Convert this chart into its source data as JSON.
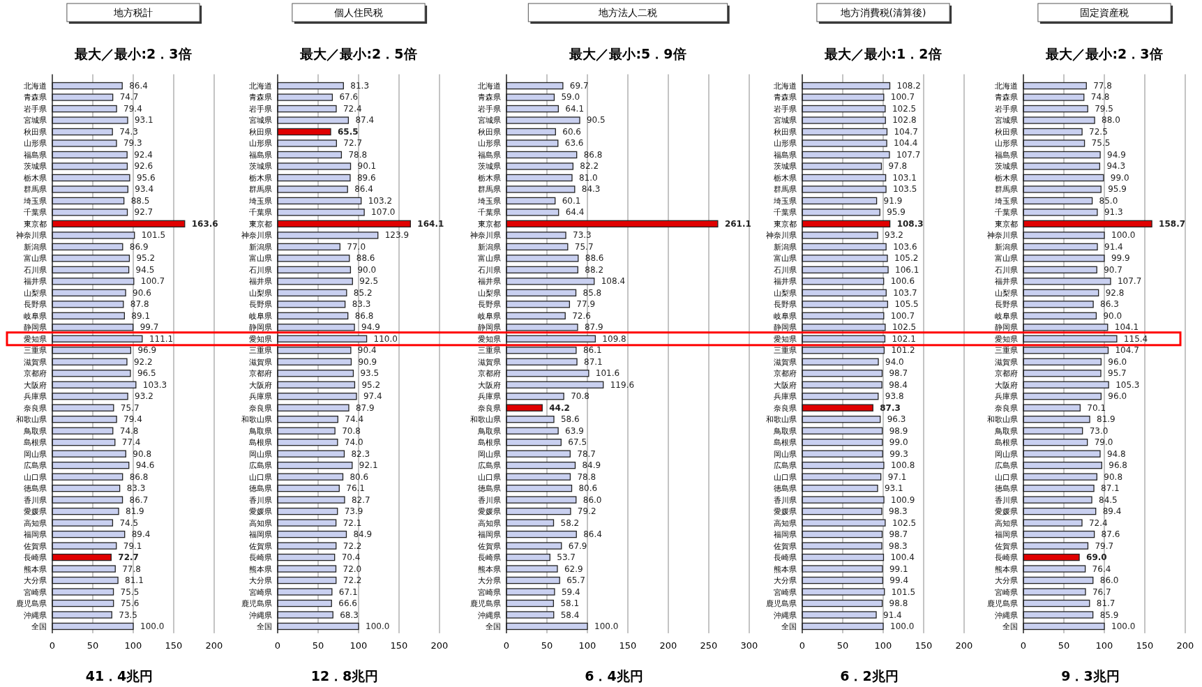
{
  "chart_data": [
    {
      "type": "bar",
      "orientation": "horizontal",
      "title": "地方税計",
      "subtitle": "最大／最小:2．3倍",
      "annotations": [
        "41．4兆円"
      ],
      "xlim": [
        0,
        200
      ],
      "xticks": [
        0,
        50,
        100,
        150,
        200
      ],
      "grid": "x",
      "data_labels": true,
      "categories": [
        "北海道",
        "青森県",
        "岩手県",
        "宮城県",
        "秋田県",
        "山形県",
        "福島県",
        "茨城県",
        "栃木県",
        "群馬県",
        "埼玉県",
        "千葉県",
        "東京都",
        "神奈川県",
        "新潟県",
        "富山県",
        "石川県",
        "福井県",
        "山梨県",
        "長野県",
        "岐阜県",
        "静岡県",
        "愛知県",
        "三重県",
        "滋賀県",
        "京都府",
        "大阪府",
        "兵庫県",
        "奈良県",
        "和歌山県",
        "鳥取県",
        "島根県",
        "岡山県",
        "広島県",
        "山口県",
        "徳島県",
        "香川県",
        "愛媛県",
        "高知県",
        "福岡県",
        "佐賀県",
        "長崎県",
        "熊本県",
        "大分県",
        "宮崎県",
        "鹿児島県",
        "沖縄県",
        "全国"
      ],
      "values": [
        86.4,
        74.7,
        79.4,
        93.1,
        74.3,
        79.3,
        92.4,
        92.6,
        95.6,
        93.4,
        88.5,
        92.7,
        163.6,
        101.5,
        86.9,
        95.2,
        94.5,
        100.7,
        90.6,
        87.8,
        89.1,
        99.7,
        111.1,
        96.9,
        92.2,
        96.5,
        103.3,
        93.2,
        75.7,
        79.4,
        74.8,
        77.4,
        90.8,
        94.6,
        86.8,
        83.3,
        86.7,
        81.9,
        74.5,
        89.4,
        79.1,
        72.7,
        77.8,
        81.1,
        75.5,
        75.6,
        73.5,
        100.0
      ],
      "value_labels": [
        "86.4",
        "74.7",
        "79.4",
        "93.1",
        "74.3",
        "79.3",
        "92.4",
        "92.6",
        "95.6",
        "93.4",
        "88.5",
        "92.7",
        "163.6",
        "101.5",
        "86.9",
        "95.2",
        "94.5",
        "100.7",
        "90.6",
        "87.8",
        "89.1",
        "99.7",
        "111.1",
        "96.9",
        "92.2",
        "96.5",
        "103.3",
        "93.2",
        "75.7",
        "79.4",
        "74.8",
        "77.4",
        "90.8",
        "94.6",
        "86.8",
        "83.3",
        "86.7",
        "81.9",
        "74.5",
        "89.4",
        "79.1",
        "72.7",
        "77.8",
        "81.1",
        "75.5",
        "75.6",
        "73.5",
        "100.0"
      ],
      "colors": [
        "#c9d0f0",
        "#c9d0f0",
        "#c9d0f0",
        "#c9d0f0",
        "#c9d0f0",
        "#c9d0f0",
        "#c9d0f0",
        "#c9d0f0",
        "#c9d0f0",
        "#c9d0f0",
        "#c9d0f0",
        "#c9d0f0",
        "#e00000",
        "#c9d0f0",
        "#c9d0f0",
        "#c9d0f0",
        "#c9d0f0",
        "#c9d0f0",
        "#c9d0f0",
        "#c9d0f0",
        "#c9d0f0",
        "#c9d0f0",
        "#c9d0f0",
        "#c9d0f0",
        "#c9d0f0",
        "#c9d0f0",
        "#c9d0f0",
        "#c9d0f0",
        "#c9d0f0",
        "#c9d0f0",
        "#c9d0f0",
        "#c9d0f0",
        "#c9d0f0",
        "#c9d0f0",
        "#c9d0f0",
        "#c9d0f0",
        "#c9d0f0",
        "#c9d0f0",
        "#c9d0f0",
        "#c9d0f0",
        "#c9d0f0",
        "#e00000",
        "#c9d0f0",
        "#c9d0f0",
        "#c9d0f0",
        "#c9d0f0",
        "#c9d0f0",
        "#c9d0f0"
      ]
    },
    {
      "type": "bar",
      "orientation": "horizontal",
      "title": "個人住民税",
      "subtitle": "最大／最小:2．5倍",
      "annotations": [
        "12．8兆円"
      ],
      "xlim": [
        0,
        200
      ],
      "xticks": [
        0,
        50,
        100,
        150,
        200
      ],
      "grid": "x",
      "data_labels": true,
      "categories": [
        "北海道",
        "青森県",
        "岩手県",
        "宮城県",
        "秋田県",
        "山形県",
        "福島県",
        "茨城県",
        "栃木県",
        "群馬県",
        "埼玉県",
        "千葉県",
        "東京都",
        "神奈川県",
        "新潟県",
        "富山県",
        "石川県",
        "福井県",
        "山梨県",
        "長野県",
        "岐阜県",
        "静岡県",
        "愛知県",
        "三重県",
        "滋賀県",
        "京都府",
        "大阪府",
        "兵庫県",
        "奈良県",
        "和歌山県",
        "鳥取県",
        "島根県",
        "岡山県",
        "広島県",
        "山口県",
        "徳島県",
        "香川県",
        "愛媛県",
        "高知県",
        "福岡県",
        "佐賀県",
        "長崎県",
        "熊本県",
        "大分県",
        "宮崎県",
        "鹿児島県",
        "沖縄県",
        "全国"
      ],
      "values": [
        81.3,
        67.6,
        72.4,
        87.4,
        65.5,
        72.7,
        78.8,
        90.1,
        89.6,
        86.4,
        103.2,
        107.0,
        164.1,
        123.9,
        77.0,
        88.6,
        90.0,
        92.5,
        85.2,
        83.3,
        86.8,
        94.9,
        110.0,
        90.4,
        90.9,
        93.5,
        95.2,
        97.4,
        87.9,
        74.4,
        70.8,
        74.0,
        82.3,
        92.1,
        80.6,
        76.1,
        82.7,
        73.9,
        72.1,
        84.9,
        72.2,
        70.4,
        72.0,
        72.2,
        67.1,
        66.6,
        68.3,
        100.0
      ],
      "value_labels": [
        "81.3",
        "67.6",
        "72.4",
        "87.4",
        "65.5",
        "72.7",
        "78.8",
        "90.1",
        "89.6",
        "86.4",
        "103.2",
        "107.0",
        "164.1",
        "123.9",
        "77.0",
        "88.6",
        "90.0",
        "92.5",
        "85.2",
        "83.3",
        "86.8",
        "94.9",
        "110.0",
        "90.4",
        "90.9",
        "93.5",
        "95.2",
        "97.4",
        "87.9",
        "74.4",
        "70.8",
        "74.0",
        "82.3",
        "92.1",
        "80.6",
        "76.1",
        "82.7",
        "73.9",
        "72.1",
        "84.9",
        "72.2",
        "70.4",
        "72.0",
        "72.2",
        "67.1",
        "66.6",
        "68.3",
        "100.0"
      ],
      "colors": [
        "#c9d0f0",
        "#c9d0f0",
        "#c9d0f0",
        "#c9d0f0",
        "#e00000",
        "#c9d0f0",
        "#c9d0f0",
        "#c9d0f0",
        "#c9d0f0",
        "#c9d0f0",
        "#c9d0f0",
        "#c9d0f0",
        "#e00000",
        "#c9d0f0",
        "#c9d0f0",
        "#c9d0f0",
        "#c9d0f0",
        "#c9d0f0",
        "#c9d0f0",
        "#c9d0f0",
        "#c9d0f0",
        "#c9d0f0",
        "#c9d0f0",
        "#c9d0f0",
        "#c9d0f0",
        "#c9d0f0",
        "#c9d0f0",
        "#c9d0f0",
        "#c9d0f0",
        "#c9d0f0",
        "#c9d0f0",
        "#c9d0f0",
        "#c9d0f0",
        "#c9d0f0",
        "#c9d0f0",
        "#c9d0f0",
        "#c9d0f0",
        "#c9d0f0",
        "#c9d0f0",
        "#c9d0f0",
        "#c9d0f0",
        "#c9d0f0",
        "#c9d0f0",
        "#c9d0f0",
        "#c9d0f0",
        "#c9d0f0",
        "#c9d0f0",
        "#c9d0f0"
      ]
    },
    {
      "type": "bar",
      "orientation": "horizontal",
      "title": "地方法人二税",
      "subtitle": "最大／最小:5．9倍",
      "annotations": [
        "6．4兆円"
      ],
      "xlim": [
        0,
        300
      ],
      "xticks": [
        0,
        50,
        100,
        150,
        200,
        250,
        300
      ],
      "grid": "x",
      "data_labels": true,
      "categories": [
        "北海道",
        "青森県",
        "岩手県",
        "宮城県",
        "秋田県",
        "山形県",
        "福島県",
        "茨城県",
        "栃木県",
        "群馬県",
        "埼玉県",
        "千葉県",
        "東京都",
        "神奈川県",
        "新潟県",
        "富山県",
        "石川県",
        "福井県",
        "山梨県",
        "長野県",
        "岐阜県",
        "静岡県",
        "愛知県",
        "三重県",
        "滋賀県",
        "京都府",
        "大阪府",
        "兵庫県",
        "奈良県",
        "和歌山県",
        "鳥取県",
        "島根県",
        "岡山県",
        "広島県",
        "山口県",
        "徳島県",
        "香川県",
        "愛媛県",
        "高知県",
        "福岡県",
        "佐賀県",
        "長崎県",
        "熊本県",
        "大分県",
        "宮崎県",
        "鹿児島県",
        "沖縄県",
        "全国"
      ],
      "values": [
        69.7,
        59.0,
        64.1,
        90.5,
        60.6,
        63.6,
        86.8,
        82.2,
        81.0,
        84.3,
        60.1,
        64.4,
        261.1,
        73.3,
        75.7,
        88.6,
        88.2,
        108.4,
        85.8,
        77.9,
        72.6,
        87.9,
        109.8,
        86.1,
        87.1,
        101.6,
        119.6,
        70.8,
        44.2,
        58.6,
        63.9,
        67.5,
        78.7,
        84.9,
        78.8,
        80.6,
        86.0,
        79.2,
        58.2,
        86.4,
        67.9,
        53.7,
        62.9,
        65.7,
        59.4,
        58.1,
        58.4,
        100.0
      ],
      "value_labels": [
        "69.7",
        "59.0",
        "64.1",
        "90.5",
        "60.6",
        "63.6",
        "86.8",
        "82.2",
        "81.0",
        "84.3",
        "60.1",
        "64.4",
        "261.1",
        "73.3",
        "75.7",
        "88.6",
        "88.2",
        "108.4",
        "85.8",
        "77.9",
        "72.6",
        "87.9",
        "109.8",
        "86.1",
        "87.1",
        "101.6",
        "119.6",
        "70.8",
        "44.2",
        "58.6",
        "63.9",
        "67.5",
        "78.7",
        "84.9",
        "78.8",
        "80.6",
        "86.0",
        "79.2",
        "58.2",
        "86.4",
        "67.9",
        "53.7",
        "62.9",
        "65.7",
        "59.4",
        "58.1",
        "58.4",
        "100.0"
      ],
      "colors": [
        "#c9d0f0",
        "#c9d0f0",
        "#c9d0f0",
        "#c9d0f0",
        "#c9d0f0",
        "#c9d0f0",
        "#c9d0f0",
        "#c9d0f0",
        "#c9d0f0",
        "#c9d0f0",
        "#c9d0f0",
        "#c9d0f0",
        "#e00000",
        "#c9d0f0",
        "#c9d0f0",
        "#c9d0f0",
        "#c9d0f0",
        "#c9d0f0",
        "#c9d0f0",
        "#c9d0f0",
        "#c9d0f0",
        "#c9d0f0",
        "#c9d0f0",
        "#c9d0f0",
        "#c9d0f0",
        "#c9d0f0",
        "#c9d0f0",
        "#c9d0f0",
        "#e00000",
        "#c9d0f0",
        "#c9d0f0",
        "#c9d0f0",
        "#c9d0f0",
        "#c9d0f0",
        "#c9d0f0",
        "#c9d0f0",
        "#c9d0f0",
        "#c9d0f0",
        "#c9d0f0",
        "#c9d0f0",
        "#c9d0f0",
        "#c9d0f0",
        "#c9d0f0",
        "#c9d0f0",
        "#c9d0f0",
        "#c9d0f0",
        "#c9d0f0",
        "#c9d0f0"
      ]
    },
    {
      "type": "bar",
      "orientation": "horizontal",
      "title": "地方消費税(清算後)",
      "subtitle": "最大／最小:1．2倍",
      "annotations": [
        "6．2兆円"
      ],
      "xlim": [
        0,
        200
      ],
      "xticks": [
        0,
        50,
        100,
        150,
        200
      ],
      "grid": "x",
      "data_labels": true,
      "categories": [
        "北海道",
        "青森県",
        "岩手県",
        "宮城県",
        "秋田県",
        "山形県",
        "福島県",
        "茨城県",
        "栃木県",
        "群馬県",
        "埼玉県",
        "千葉県",
        "東京都",
        "神奈川県",
        "新潟県",
        "富山県",
        "石川県",
        "福井県",
        "山梨県",
        "長野県",
        "岐阜県",
        "静岡県",
        "愛知県",
        "三重県",
        "滋賀県",
        "京都府",
        "大阪府",
        "兵庫県",
        "奈良県",
        "和歌山県",
        "鳥取県",
        "島根県",
        "岡山県",
        "広島県",
        "山口県",
        "徳島県",
        "香川県",
        "愛媛県",
        "高知県",
        "福岡県",
        "佐賀県",
        "長崎県",
        "熊本県",
        "大分県",
        "宮崎県",
        "鹿児島県",
        "沖縄県",
        "全国"
      ],
      "values": [
        108.2,
        100.7,
        102.5,
        102.8,
        104.7,
        104.4,
        107.7,
        97.8,
        103.1,
        103.5,
        91.9,
        95.9,
        108.3,
        93.2,
        103.6,
        105.2,
        106.1,
        100.6,
        103.7,
        105.5,
        100.7,
        102.5,
        102.1,
        101.2,
        94.0,
        98.7,
        98.4,
        93.8,
        87.3,
        96.3,
        98.9,
        99.0,
        99.3,
        100.8,
        97.1,
        93.1,
        100.9,
        98.3,
        102.5,
        98.7,
        98.3,
        100.4,
        99.1,
        99.4,
        101.5,
        98.8,
        91.4,
        100.0
      ],
      "value_labels": [
        "108.2",
        "100.7",
        "102.5",
        "102.8",
        "104.7",
        "104.4",
        "107.7",
        "97.8",
        "103.1",
        "103.5",
        "91.9",
        "95.9",
        "108.3",
        "93.2",
        "103.6",
        "105.2",
        "106.1",
        "100.6",
        "103.7",
        "105.5",
        "100.7",
        "102.5",
        "102.1",
        "101.2",
        "94.0",
        "98.7",
        "98.4",
        "93.8",
        "87.3",
        "96.3",
        "98.9",
        "99.0",
        "99.3",
        "100.8",
        "97.1",
        "93.1",
        "100.9",
        "98.3",
        "102.5",
        "98.7",
        "98.3",
        "100.4",
        "99.1",
        "99.4",
        "101.5",
        "98.8",
        "91.4",
        "100.0"
      ],
      "colors": [
        "#c9d0f0",
        "#c9d0f0",
        "#c9d0f0",
        "#c9d0f0",
        "#c9d0f0",
        "#c9d0f0",
        "#c9d0f0",
        "#c9d0f0",
        "#c9d0f0",
        "#c9d0f0",
        "#c9d0f0",
        "#c9d0f0",
        "#e00000",
        "#c9d0f0",
        "#c9d0f0",
        "#c9d0f0",
        "#c9d0f0",
        "#c9d0f0",
        "#c9d0f0",
        "#c9d0f0",
        "#c9d0f0",
        "#c9d0f0",
        "#c9d0f0",
        "#c9d0f0",
        "#c9d0f0",
        "#c9d0f0",
        "#c9d0f0",
        "#c9d0f0",
        "#e00000",
        "#c9d0f0",
        "#c9d0f0",
        "#c9d0f0",
        "#c9d0f0",
        "#c9d0f0",
        "#c9d0f0",
        "#c9d0f0",
        "#c9d0f0",
        "#c9d0f0",
        "#c9d0f0",
        "#c9d0f0",
        "#c9d0f0",
        "#c9d0f0",
        "#c9d0f0",
        "#c9d0f0",
        "#c9d0f0",
        "#c9d0f0",
        "#c9d0f0",
        "#c9d0f0"
      ]
    },
    {
      "type": "bar",
      "orientation": "horizontal",
      "title": "固定資産税",
      "subtitle": "最大／最小:2．3倍",
      "annotations": [
        "9．3兆円"
      ],
      "xlim": [
        0,
        200
      ],
      "xticks": [
        0,
        50,
        100,
        150,
        200
      ],
      "grid": "x",
      "data_labels": true,
      "categories": [
        "北海道",
        "青森県",
        "岩手県",
        "宮城県",
        "秋田県",
        "山形県",
        "福島県",
        "茨城県",
        "栃木県",
        "群馬県",
        "埼玉県",
        "千葉県",
        "東京都",
        "神奈川県",
        "新潟県",
        "富山県",
        "石川県",
        "福井県",
        "山梨県",
        "長野県",
        "岐阜県",
        "静岡県",
        "愛知県",
        "三重県",
        "滋賀県",
        "京都府",
        "大阪府",
        "兵庫県",
        "奈良県",
        "和歌山県",
        "鳥取県",
        "島根県",
        "岡山県",
        "広島県",
        "山口県",
        "徳島県",
        "香川県",
        "愛媛県",
        "高知県",
        "福岡県",
        "佐賀県",
        "長崎県",
        "熊本県",
        "大分県",
        "宮崎県",
        "鹿児島県",
        "沖縄県",
        "全国"
      ],
      "values": [
        77.8,
        74.8,
        79.5,
        88.0,
        72.5,
        75.5,
        94.9,
        94.3,
        99.0,
        95.9,
        85.0,
        91.3,
        158.7,
        100.0,
        91.4,
        99.9,
        90.7,
        107.7,
        92.8,
        86.3,
        90.0,
        104.1,
        115.4,
        104.7,
        96.0,
        95.7,
        105.3,
        96.0,
        70.1,
        81.9,
        73.0,
        79.0,
        94.8,
        96.8,
        90.8,
        87.1,
        84.5,
        89.4,
        72.4,
        87.6,
        79.7,
        69.0,
        76.4,
        86.0,
        76.7,
        81.7,
        85.9,
        100.0
      ],
      "value_labels": [
        "77.8",
        "74.8",
        "79.5",
        "88.0",
        "72.5",
        "75.5",
        "94.9",
        "94.3",
        "99.0",
        "95.9",
        "85.0",
        "91.3",
        "158.7",
        "100.0",
        "91.4",
        "99.9",
        "90.7",
        "107.7",
        "92.8",
        "86.3",
        "90.0",
        "104.1",
        "115.4",
        "104.7",
        "96.0",
        "95.7",
        "105.3",
        "96.0",
        "70.1",
        "81.9",
        "73.0",
        "79.0",
        "94.8",
        "96.8",
        "90.8",
        "87.1",
        "84.5",
        "89.4",
        "72.4",
        "87.6",
        "79.7",
        "69.0",
        "76.4",
        "86.0",
        "76.7",
        "81.7",
        "85.9",
        "100.0"
      ],
      "colors": [
        "#c9d0f0",
        "#c9d0f0",
        "#c9d0f0",
        "#c9d0f0",
        "#c9d0f0",
        "#c9d0f0",
        "#c9d0f0",
        "#c9d0f0",
        "#c9d0f0",
        "#c9d0f0",
        "#c9d0f0",
        "#c9d0f0",
        "#e00000",
        "#c9d0f0",
        "#c9d0f0",
        "#c9d0f0",
        "#c9d0f0",
        "#c9d0f0",
        "#c9d0f0",
        "#c9d0f0",
        "#c9d0f0",
        "#c9d0f0",
        "#c9d0f0",
        "#c9d0f0",
        "#c9d0f0",
        "#c9d0f0",
        "#c9d0f0",
        "#c9d0f0",
        "#c9d0f0",
        "#c9d0f0",
        "#c9d0f0",
        "#c9d0f0",
        "#c9d0f0",
        "#c9d0f0",
        "#c9d0f0",
        "#c9d0f0",
        "#c9d0f0",
        "#c9d0f0",
        "#c9d0f0",
        "#c9d0f0",
        "#c9d0f0",
        "#e00000",
        "#c9d0f0",
        "#c9d0f0",
        "#c9d0f0",
        "#c9d0f0",
        "#c9d0f0",
        "#c9d0f0"
      ]
    }
  ]
}
